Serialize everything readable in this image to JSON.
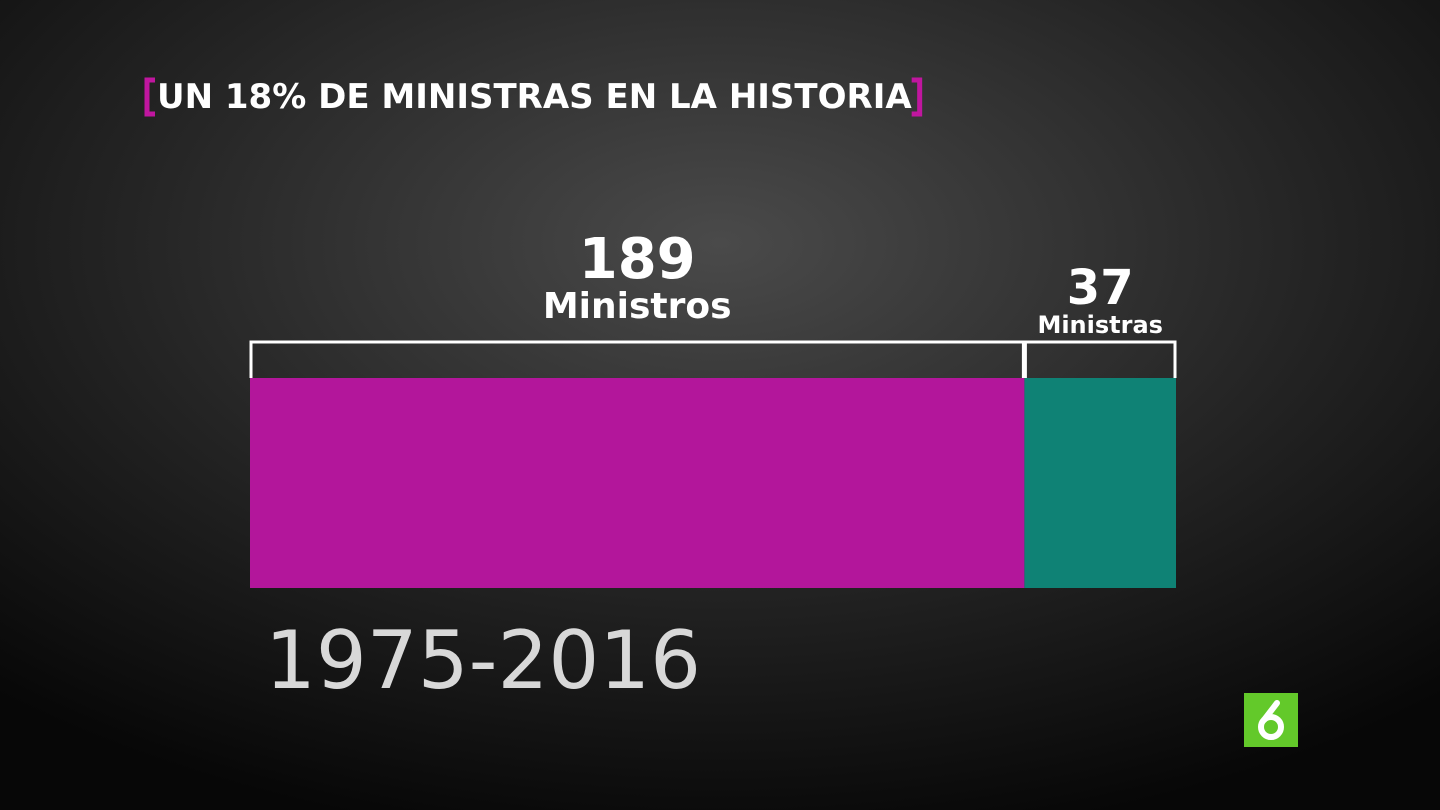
{
  "chart_data": {
    "type": "bar",
    "orientation": "horizontal",
    "stacked": true,
    "title": "UN 18% DE MINISTRAS EN LA HISTORIA",
    "subtitle": "1975-2016",
    "series": [
      {
        "name": "Ministros",
        "color": "#b3169b",
        "values": [
          189
        ]
      },
      {
        "name": "Ministras",
        "color": "#0f8275",
        "values": [
          37
        ]
      }
    ]
  }
}
